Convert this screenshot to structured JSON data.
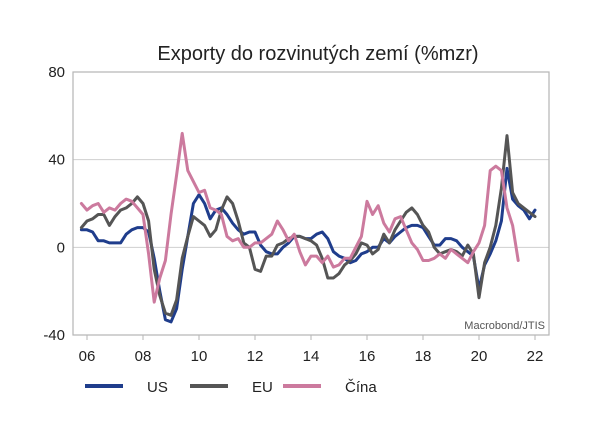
{
  "chart_data": {
    "type": "line",
    "title": "Exporty do rozvinutých zemí (%mzr)",
    "source_note": "Macrobond/JTIS",
    "xlabel": "",
    "ylabel": "",
    "xlim": [
      2005.5,
      2022.5
    ],
    "ylim": [
      -40,
      80
    ],
    "y_ticks": [
      80,
      40,
      0,
      -40
    ],
    "x_ticks": [
      {
        "value": 2006,
        "label": "06"
      },
      {
        "value": 2008,
        "label": "08"
      },
      {
        "value": 2010,
        "label": "10"
      },
      {
        "value": 2012,
        "label": "12"
      },
      {
        "value": 2014,
        "label": "14"
      },
      {
        "value": 2016,
        "label": "16"
      },
      {
        "value": 2018,
        "label": "18"
      },
      {
        "value": 2020,
        "label": "20"
      },
      {
        "value": 2022,
        "label": "22"
      }
    ],
    "grid": {
      "horizontal": true,
      "vertical": false
    },
    "legend_position": "bottom",
    "series": [
      {
        "name": "US",
        "color": "#1f3d8c",
        "points": [
          [
            2005.8,
            8
          ],
          [
            2006.0,
            8
          ],
          [
            2006.2,
            7
          ],
          [
            2006.4,
            3
          ],
          [
            2006.6,
            3
          ],
          [
            2006.8,
            2
          ],
          [
            2007.0,
            2
          ],
          [
            2007.2,
            2
          ],
          [
            2007.4,
            6
          ],
          [
            2007.6,
            8
          ],
          [
            2007.8,
            9
          ],
          [
            2008.0,
            9
          ],
          [
            2008.2,
            7
          ],
          [
            2008.4,
            -5
          ],
          [
            2008.6,
            -20
          ],
          [
            2008.8,
            -33
          ],
          [
            2009.0,
            -34
          ],
          [
            2009.2,
            -28
          ],
          [
            2009.4,
            -10
          ],
          [
            2009.6,
            5
          ],
          [
            2009.8,
            20
          ],
          [
            2010.0,
            24
          ],
          [
            2010.2,
            20
          ],
          [
            2010.4,
            13
          ],
          [
            2010.6,
            17
          ],
          [
            2010.8,
            18
          ],
          [
            2011.0,
            15
          ],
          [
            2011.2,
            11
          ],
          [
            2011.4,
            8
          ],
          [
            2011.6,
            6
          ],
          [
            2011.8,
            7
          ],
          [
            2012.0,
            7
          ],
          [
            2012.2,
            1
          ],
          [
            2012.4,
            -2
          ],
          [
            2012.6,
            -3
          ],
          [
            2012.8,
            -3
          ],
          [
            2013.0,
            0
          ],
          [
            2013.2,
            2
          ],
          [
            2013.4,
            5
          ],
          [
            2013.6,
            5
          ],
          [
            2013.8,
            4
          ],
          [
            2014.0,
            4
          ],
          [
            2014.2,
            6
          ],
          [
            2014.4,
            7
          ],
          [
            2014.6,
            4
          ],
          [
            2014.8,
            -2
          ],
          [
            2015.0,
            -4
          ],
          [
            2015.2,
            -5
          ],
          [
            2015.4,
            -7
          ],
          [
            2015.6,
            -6
          ],
          [
            2015.8,
            -3
          ],
          [
            2016.0,
            -2
          ],
          [
            2016.2,
            0
          ],
          [
            2016.4,
            0
          ],
          [
            2016.6,
            4
          ],
          [
            2016.8,
            2
          ],
          [
            2017.0,
            5
          ],
          [
            2017.2,
            7
          ],
          [
            2017.4,
            9
          ],
          [
            2017.6,
            10
          ],
          [
            2017.8,
            10
          ],
          [
            2018.0,
            9
          ],
          [
            2018.2,
            5
          ],
          [
            2018.4,
            1
          ],
          [
            2018.6,
            1
          ],
          [
            2018.8,
            4
          ],
          [
            2019.0,
            4
          ],
          [
            2019.2,
            3
          ],
          [
            2019.4,
            0
          ],
          [
            2019.6,
            -2
          ],
          [
            2019.8,
            -4
          ],
          [
            2020.0,
            -19
          ],
          [
            2020.2,
            -8
          ],
          [
            2020.4,
            -3
          ],
          [
            2020.6,
            3
          ],
          [
            2020.8,
            12
          ],
          [
            2021.0,
            36
          ],
          [
            2021.2,
            22
          ],
          [
            2021.4,
            19
          ],
          [
            2021.6,
            17
          ],
          [
            2021.8,
            13
          ],
          [
            2022.0,
            17
          ]
        ]
      },
      {
        "name": "EU",
        "color": "#555555",
        "points": [
          [
            2005.8,
            9
          ],
          [
            2006.0,
            12
          ],
          [
            2006.2,
            13
          ],
          [
            2006.4,
            15
          ],
          [
            2006.6,
            15
          ],
          [
            2006.8,
            10
          ],
          [
            2007.0,
            14
          ],
          [
            2007.2,
            17
          ],
          [
            2007.4,
            18
          ],
          [
            2007.6,
            20
          ],
          [
            2007.8,
            23
          ],
          [
            2008.0,
            20
          ],
          [
            2008.2,
            12
          ],
          [
            2008.4,
            -10
          ],
          [
            2008.6,
            -22
          ],
          [
            2008.8,
            -30
          ],
          [
            2009.0,
            -31
          ],
          [
            2009.2,
            -24
          ],
          [
            2009.4,
            -5
          ],
          [
            2009.6,
            5
          ],
          [
            2009.8,
            14
          ],
          [
            2010.0,
            12
          ],
          [
            2010.2,
            10
          ],
          [
            2010.4,
            5
          ],
          [
            2010.6,
            8
          ],
          [
            2010.8,
            17
          ],
          [
            2011.0,
            23
          ],
          [
            2011.2,
            20
          ],
          [
            2011.4,
            12
          ],
          [
            2011.6,
            2
          ],
          [
            2011.8,
            0
          ],
          [
            2012.0,
            -10
          ],
          [
            2012.2,
            -11
          ],
          [
            2012.4,
            -4
          ],
          [
            2012.6,
            -4
          ],
          [
            2012.8,
            1
          ],
          [
            2013.0,
            2
          ],
          [
            2013.2,
            4
          ],
          [
            2013.4,
            5
          ],
          [
            2013.6,
            5
          ],
          [
            2013.8,
            4
          ],
          [
            2014.0,
            3
          ],
          [
            2014.2,
            1
          ],
          [
            2014.4,
            -5
          ],
          [
            2014.6,
            -14
          ],
          [
            2014.8,
            -14
          ],
          [
            2015.0,
            -12
          ],
          [
            2015.2,
            -8
          ],
          [
            2015.4,
            -6
          ],
          [
            2015.6,
            -3
          ],
          [
            2015.8,
            2
          ],
          [
            2016.0,
            1
          ],
          [
            2016.2,
            -3
          ],
          [
            2016.4,
            -1
          ],
          [
            2016.6,
            6
          ],
          [
            2016.8,
            2
          ],
          [
            2017.0,
            8
          ],
          [
            2017.2,
            12
          ],
          [
            2017.4,
            16
          ],
          [
            2017.6,
            18
          ],
          [
            2017.8,
            15
          ],
          [
            2018.0,
            10
          ],
          [
            2018.2,
            7
          ],
          [
            2018.4,
            0
          ],
          [
            2018.6,
            -3
          ],
          [
            2018.8,
            -2
          ],
          [
            2019.0,
            -1
          ],
          [
            2019.2,
            -2
          ],
          [
            2019.4,
            -4
          ],
          [
            2019.6,
            1
          ],
          [
            2019.8,
            -3
          ],
          [
            2020.0,
            -23
          ],
          [
            2020.2,
            -7
          ],
          [
            2020.4,
            0
          ],
          [
            2020.6,
            10
          ],
          [
            2020.8,
            27
          ],
          [
            2021.0,
            51
          ],
          [
            2021.2,
            25
          ],
          [
            2021.4,
            20
          ],
          [
            2021.6,
            18
          ],
          [
            2021.8,
            16
          ],
          [
            2022.0,
            14
          ]
        ]
      },
      {
        "name": "Čína",
        "color": "#cc7a9e",
        "points": [
          [
            2005.8,
            20
          ],
          [
            2006.0,
            17
          ],
          [
            2006.2,
            19
          ],
          [
            2006.4,
            20
          ],
          [
            2006.6,
            16
          ],
          [
            2006.8,
            18
          ],
          [
            2007.0,
            17
          ],
          [
            2007.2,
            20
          ],
          [
            2007.4,
            22
          ],
          [
            2007.6,
            21
          ],
          [
            2007.8,
            18
          ],
          [
            2008.0,
            15
          ],
          [
            2008.2,
            -3
          ],
          [
            2008.4,
            -25
          ],
          [
            2008.6,
            -14
          ],
          [
            2008.8,
            -6
          ],
          [
            2009.0,
            15
          ],
          [
            2009.2,
            33
          ],
          [
            2009.4,
            52
          ],
          [
            2009.6,
            35
          ],
          [
            2009.8,
            30
          ],
          [
            2010.0,
            25
          ],
          [
            2010.2,
            26
          ],
          [
            2010.4,
            18
          ],
          [
            2010.6,
            17
          ],
          [
            2010.8,
            15
          ],
          [
            2011.0,
            5
          ],
          [
            2011.2,
            3
          ],
          [
            2011.4,
            4
          ],
          [
            2011.6,
            0
          ],
          [
            2011.8,
            0
          ],
          [
            2012.0,
            2
          ],
          [
            2012.2,
            2
          ],
          [
            2012.4,
            4
          ],
          [
            2012.6,
            6
          ],
          [
            2012.8,
            12
          ],
          [
            2013.0,
            8
          ],
          [
            2013.2,
            3
          ],
          [
            2013.4,
            6
          ],
          [
            2013.6,
            -2
          ],
          [
            2013.8,
            -8
          ],
          [
            2014.0,
            -4
          ],
          [
            2014.2,
            -4
          ],
          [
            2014.4,
            -7
          ],
          [
            2014.6,
            -4
          ],
          [
            2014.8,
            -9
          ],
          [
            2015.0,
            -8
          ],
          [
            2015.2,
            -5
          ],
          [
            2015.4,
            -5
          ],
          [
            2015.6,
            0
          ],
          [
            2015.8,
            5
          ],
          [
            2016.0,
            21
          ],
          [
            2016.2,
            15
          ],
          [
            2016.4,
            19
          ],
          [
            2016.6,
            11
          ],
          [
            2016.8,
            7
          ],
          [
            2017.0,
            13
          ],
          [
            2017.2,
            14
          ],
          [
            2017.4,
            8
          ],
          [
            2017.6,
            2
          ],
          [
            2017.8,
            -1
          ],
          [
            2018.0,
            -6
          ],
          [
            2018.2,
            -6
          ],
          [
            2018.4,
            -5
          ],
          [
            2018.6,
            -3
          ],
          [
            2018.8,
            -5
          ],
          [
            2019.0,
            -1
          ],
          [
            2019.2,
            -3
          ],
          [
            2019.4,
            -5
          ],
          [
            2019.6,
            -7
          ],
          [
            2019.8,
            -2
          ],
          [
            2020.0,
            2
          ],
          [
            2020.2,
            10
          ],
          [
            2020.4,
            35
          ],
          [
            2020.6,
            37
          ],
          [
            2020.8,
            35
          ],
          [
            2021.0,
            18
          ],
          [
            2021.2,
            10
          ],
          [
            2021.4,
            -6
          ]
        ]
      }
    ]
  }
}
